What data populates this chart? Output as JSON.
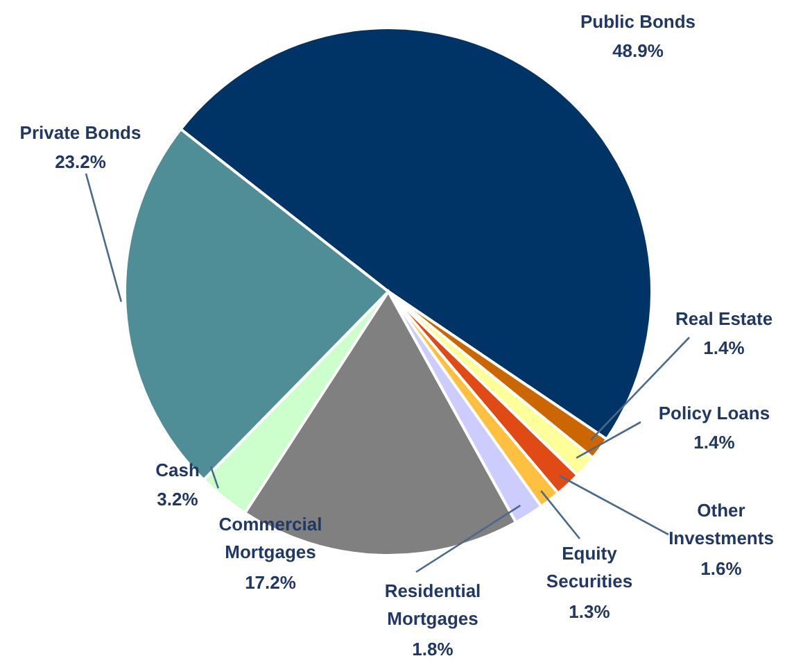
{
  "chart_data": {
    "type": "pie",
    "categories": [
      "Public Bonds",
      "Real Estate",
      "Policy Loans",
      "Other Investments",
      "Equity Securities",
      "Residential Mortgages",
      "Commercial Mortgages",
      "Cash",
      "Private Bonds"
    ],
    "values": [
      48.9,
      1.4,
      1.4,
      1.6,
      1.3,
      1.8,
      17.2,
      3.2,
      23.2
    ],
    "colors": [
      "#003366",
      "#cc6600",
      "#ffff99",
      "#e04a14",
      "#ffc040",
      "#ccccff",
      "#808080",
      "#ccffcc",
      "#4f8e96"
    ],
    "value_labels": [
      "48.9%",
      "1.4%",
      "1.4%",
      "1.6%",
      "1.3%",
      "1.8%",
      "17.2%",
      "3.2%",
      "23.2%"
    ],
    "legend": false
  }
}
